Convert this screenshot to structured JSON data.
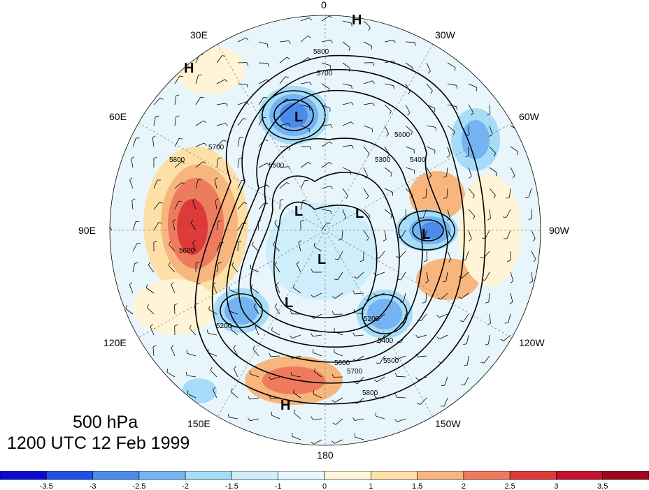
{
  "title": {
    "level": "500 hPa",
    "time": "1200 UTC 12 Feb 1999"
  },
  "longitude_labels": [
    "0",
    "30W",
    "60W",
    "90W",
    "120W",
    "150W",
    "180",
    "150E",
    "120E",
    "90E",
    "60E",
    "30E"
  ],
  "contour_labels": [
    "5800",
    "5700",
    "5600",
    "5500",
    "5400",
    "5300",
    "5200",
    "5800",
    "5700",
    "5600",
    "5400",
    "5200",
    "5500",
    "5600",
    "5700",
    "5800"
  ],
  "pressure_centers": [
    "H",
    "H",
    "H",
    "L",
    "L",
    "L",
    "L",
    "L",
    "L"
  ],
  "colorbar": {
    "labels": [
      "-3.5",
      "-3",
      "-2.5",
      "-2",
      "-1.5",
      "-1",
      "0",
      "1",
      "1.5",
      "2",
      "2.5",
      "3",
      "3.5"
    ],
    "colors": [
      "#0b0bd0",
      "#2050e6",
      "#4a8bea",
      "#74b4f2",
      "#a6dcf8",
      "#cfeefc",
      "#e6f7ff",
      "#fff5d6",
      "#fde0a8",
      "#f6b67e",
      "#ee7b5e",
      "#dd3a3a",
      "#c4112c",
      "#a0051e"
    ]
  }
}
